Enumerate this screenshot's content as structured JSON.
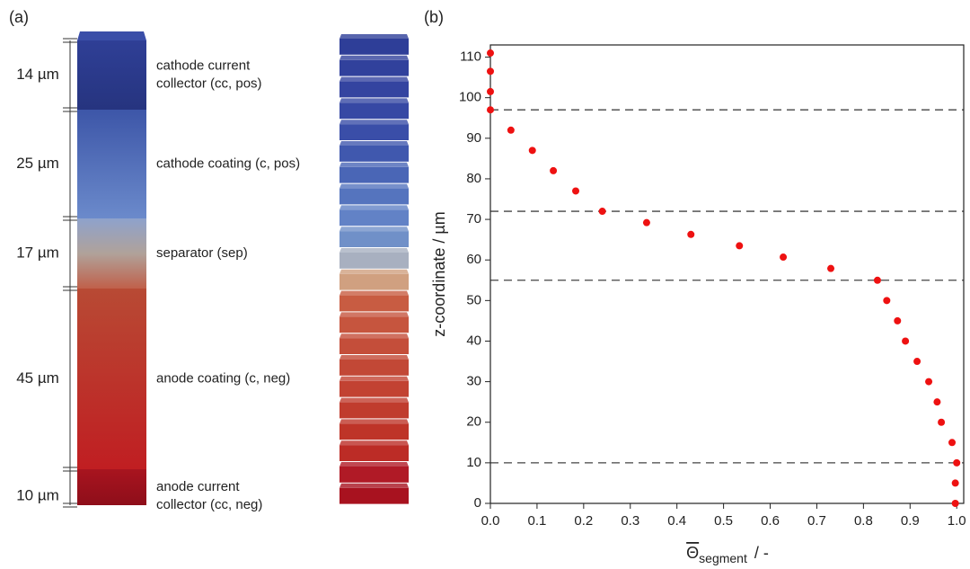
{
  "panel_labels": [
    "(a)",
    "(b)"
  ],
  "layers": [
    {
      "thickness": "14 µm",
      "name": [
        "cathode current",
        "collector (cc, pos)"
      ]
    },
    {
      "thickness": "25 µm",
      "name": [
        "cathode coating (c, pos)"
      ]
    },
    {
      "thickness": "17 µm",
      "name": [
        "separator (sep)"
      ]
    },
    {
      "thickness": "45 µm",
      "name": [
        "anode coating (c, neg)"
      ]
    },
    {
      "thickness": "10 µm",
      "name": [
        "anode current",
        "collector (cc, neg)"
      ]
    }
  ],
  "chart_data": {
    "type": "scatter",
    "x_label": {
      "symbol": "Θ",
      "subscript": "segment",
      "unit": "/  -"
    },
    "y_label": "z-coordinate  /  µm",
    "color": "#ee1111",
    "x": [
      0,
      0,
      0,
      0,
      0.044,
      0.09,
      0.135,
      0.183,
      0.24,
      0.335,
      0.43,
      0.534,
      0.628,
      0.73,
      0.83,
      0.85,
      0.873,
      0.89,
      0.915,
      0.94,
      0.958,
      0.967,
      0.99,
      1.0,
      0.997,
      0.997
    ],
    "values": [
      111,
      106.5,
      101.5,
      97,
      92,
      87,
      82,
      77,
      72,
      69.2,
      66.3,
      63.5,
      60.7,
      57.9,
      55,
      50,
      45,
      40,
      35,
      30,
      25,
      20,
      15,
      10,
      5,
      0
    ],
    "xlim": [
      0,
      1.015
    ],
    "ylim": [
      0,
      113
    ],
    "xticks": [
      {
        "value": 0,
        "label": "0.0"
      },
      0.1,
      0.2,
      0.3,
      0.4,
      0.5,
      0.6,
      0.7,
      0.8,
      0.9,
      {
        "value": 1,
        "label": "1.0"
      }
    ],
    "yticks": [
      0,
      10,
      20,
      30,
      40,
      50,
      60,
      70,
      80,
      90,
      100,
      110
    ],
    "hlines": [
      97,
      72,
      55,
      10
    ]
  }
}
